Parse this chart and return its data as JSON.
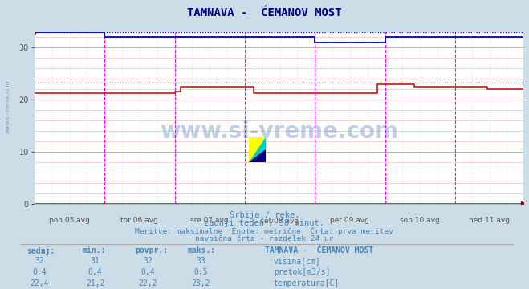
{
  "title": "TAMNAVA -  ĆEMANOV MOST",
  "subtitle1": "Srbija / reke.",
  "subtitle2": "zadnji teden / 30 minut.",
  "subtitle3": "Meritve: maksimalne  Enote: metrične  Črta: prva meritev",
  "subtitle4": "navpična črta - razdelek 24 ur",
  "bg_color": "#ccdde8",
  "plot_bg_color": "#ffffff",
  "title_color": "#00008b",
  "text_color": "#4682b4",
  "n_points": 336,
  "xlim": [
    0,
    335
  ],
  "ylim": [
    0,
    33
  ],
  "yticks": [
    0,
    10,
    20,
    30
  ],
  "day_labels": [
    "pon 05 avg",
    "tor 06 avg",
    "sre 07 avg",
    "čet 08 avg",
    "pet 09 avg",
    "sob 10 avg",
    "ned 11 avg"
  ],
  "day_tick_positions": [
    0,
    48,
    96,
    144,
    192,
    240,
    288,
    335
  ],
  "visina_color": "#0000cc",
  "pretok_color": "#008000",
  "temp_color": "#cc0000",
  "watermark": "www.si-vreme.com",
  "table_headers": [
    "sedaj:",
    "min.:",
    "povpr.:",
    "maks.:"
  ],
  "table_col0": [
    "32",
    "0,4",
    "22,4"
  ],
  "table_col1": [
    "31",
    "0,4",
    "21,2"
  ],
  "table_col2": [
    "32",
    "0,4",
    "22,2"
  ],
  "table_col3": [
    "33",
    "0,5",
    "23,2"
  ],
  "legend_station": "TAMNAVA -  ĆEMANOV MOST",
  "legend_labels": [
    "višina[cm]",
    "pretok[m3/s]",
    "temperatura[C]"
  ],
  "legend_colors": [
    "#0000cc",
    "#008000",
    "#cc0000"
  ]
}
